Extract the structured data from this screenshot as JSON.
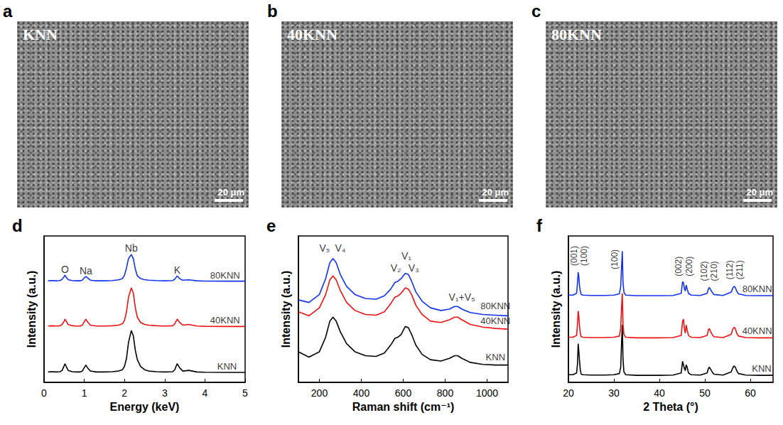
{
  "images": [
    {
      "panel": "a",
      "label": "KNN",
      "scale_bar": "20 μm"
    },
    {
      "panel": "b",
      "label": "40KNN",
      "scale_bar": "20 μm"
    },
    {
      "panel": "c",
      "label": "80KNN",
      "scale_bar": "20 μm"
    }
  ],
  "chart_data": [
    {
      "panel": "d",
      "type": "line",
      "x_label": "Energy (keV)",
      "y_label": "Intensity (a.u.)",
      "xlim": [
        0,
        5
      ],
      "xticks": [
        0,
        1,
        2,
        3,
        4,
        5
      ],
      "ylim": [
        0,
        11
      ],
      "tick_labels": "x",
      "grid": false,
      "x": [
        0.1,
        0.2,
        0.3,
        0.4,
        0.45,
        0.5,
        0.52,
        0.55,
        0.6,
        0.7,
        0.8,
        0.9,
        0.95,
        1.0,
        1.04,
        1.08,
        1.15,
        1.3,
        1.5,
        1.7,
        1.85,
        1.95,
        2.0,
        2.05,
        2.1,
        2.17,
        2.22,
        2.27,
        2.32,
        2.4,
        2.5,
        2.6,
        2.8,
        3.0,
        3.2,
        3.25,
        3.31,
        3.37,
        3.45,
        3.6,
        3.8,
        4.0,
        4.5,
        5.0
      ],
      "series": [
        {
          "name": "KNN",
          "color": "#000000",
          "label_xy": [
            4.55,
            1.2
          ],
          "values": [
            0.78,
            0.8,
            0.78,
            0.8,
            0.9,
            1.25,
            1.4,
            1.2,
            0.9,
            0.8,
            0.78,
            0.78,
            0.85,
            1.1,
            1.3,
            1.1,
            0.85,
            0.78,
            0.78,
            0.8,
            0.85,
            0.95,
            1.2,
            1.8,
            3.0,
            3.9,
            3.5,
            2.4,
            1.7,
            1.2,
            0.95,
            0.85,
            0.8,
            0.78,
            0.8,
            0.95,
            1.4,
            1.1,
            0.85,
            0.9,
            0.78,
            0.76,
            0.75,
            0.75
          ]
        },
        {
          "name": "40KNN",
          "color": "#ee1111",
          "label_xy": [
            4.5,
            4.65
          ],
          "values": [
            4.23,
            4.25,
            4.23,
            4.25,
            4.35,
            4.6,
            4.75,
            4.6,
            4.35,
            4.25,
            4.23,
            4.23,
            4.3,
            4.55,
            4.75,
            4.55,
            4.3,
            4.23,
            4.23,
            4.25,
            4.3,
            4.4,
            4.65,
            5.3,
            6.4,
            7.1,
            6.7,
            5.6,
            4.9,
            4.5,
            4.35,
            4.3,
            4.25,
            4.23,
            4.25,
            4.4,
            4.75,
            4.5,
            4.3,
            4.35,
            4.23,
            4.21,
            4.2,
            4.2
          ]
        },
        {
          "name": "80KNN",
          "color": "#1133ee",
          "label_xy": [
            4.5,
            8.05
          ],
          "values": [
            7.63,
            7.65,
            7.63,
            7.65,
            7.75,
            7.95,
            8.05,
            7.9,
            7.72,
            7.65,
            7.63,
            7.63,
            7.68,
            7.85,
            7.95,
            7.85,
            7.68,
            7.63,
            7.63,
            7.65,
            7.7,
            7.8,
            8.05,
            8.6,
            9.3,
            9.6,
            9.3,
            8.5,
            8.0,
            7.8,
            7.72,
            7.68,
            7.65,
            7.63,
            7.65,
            7.75,
            8.0,
            7.8,
            7.68,
            7.7,
            7.63,
            7.61,
            7.6,
            7.6
          ]
        }
      ],
      "annotations": [
        {
          "x": 0.52,
          "y": 8.5,
          "text": "O"
        },
        {
          "x": 1.04,
          "y": 8.4,
          "text": "Na"
        },
        {
          "x": 2.17,
          "y": 10.1,
          "text": "Nb"
        },
        {
          "x": 3.31,
          "y": 8.45,
          "text": "K"
        }
      ]
    },
    {
      "panel": "e",
      "type": "line",
      "x_label": "Raman shift (cm⁻¹)",
      "y_label": "Intensity (a.u.)",
      "xlim": [
        100,
        1100
      ],
      "xticks": [
        200,
        400,
        600,
        800,
        1000
      ],
      "ylim": [
        0,
        11
      ],
      "tick_labels": "x",
      "grid": false,
      "x": [
        100,
        150,
        200,
        230,
        250,
        265,
        280,
        300,
        330,
        370,
        420,
        470,
        510,
        540,
        560,
        575,
        590,
        610,
        625,
        640,
        660,
        690,
        730,
        780,
        820,
        845,
        860,
        880,
        920,
        980,
        1040,
        1100
      ],
      "series": [
        {
          "name": "KNN",
          "color": "#000000",
          "label_xy": [
            1040,
            1.9
          ],
          "values": [
            2.3,
            1.9,
            2.3,
            3.4,
            4.6,
            4.9,
            4.6,
            3.8,
            2.9,
            2.3,
            2.0,
            1.95,
            2.2,
            2.8,
            3.3,
            3.4,
            3.6,
            4.2,
            4.1,
            3.6,
            2.8,
            2.1,
            1.7,
            1.6,
            1.8,
            2.0,
            2.0,
            1.8,
            1.5,
            1.35,
            1.3,
            1.3
          ]
        },
        {
          "name": "40KNN",
          "color": "#ee1111",
          "label_xy": [
            1040,
            4.6
          ],
          "values": [
            5.3,
            5.0,
            5.6,
            6.6,
            7.7,
            8.0,
            7.7,
            6.9,
            6.0,
            5.4,
            5.1,
            5.05,
            5.3,
            5.9,
            6.4,
            6.5,
            6.7,
            7.1,
            7.0,
            6.6,
            5.8,
            5.1,
            4.6,
            4.5,
            4.7,
            4.9,
            4.9,
            4.7,
            4.35,
            4.15,
            4.05,
            4.0
          ]
        },
        {
          "name": "80KNN",
          "color": "#1133ee",
          "label_xy": [
            1040,
            5.75
          ],
          "values": [
            6.2,
            6.0,
            6.6,
            7.8,
            9.0,
            9.3,
            9.0,
            8.1,
            7.2,
            6.6,
            6.3,
            6.25,
            6.5,
            7.0,
            7.5,
            7.6,
            7.8,
            8.2,
            8.1,
            7.6,
            6.8,
            6.1,
            5.6,
            5.4,
            5.5,
            5.7,
            5.7,
            5.5,
            5.25,
            5.1,
            5.05,
            5.0
          ]
        }
      ],
      "annotations": [
        {
          "x": 225,
          "y": 10.1,
          "text": "V₅"
        },
        {
          "x": 300,
          "y": 10.1,
          "text": "V₄"
        },
        {
          "x": 615,
          "y": 9.5,
          "text": "V₁"
        },
        {
          "x": 565,
          "y": 8.6,
          "text": "V₂"
        },
        {
          "x": 650,
          "y": 8.6,
          "text": "V₃"
        },
        {
          "x": 880,
          "y": 6.4,
          "text": "V₁+V₅"
        }
      ]
    },
    {
      "panel": "f",
      "type": "line",
      "x_label": "2 Theta (°)",
      "y_label": "Intensity (a.u.)",
      "xlim": [
        20,
        65
      ],
      "xticks": [
        20,
        30,
        40,
        50,
        60
      ],
      "ylim": [
        0,
        12.5
      ],
      "tick_labels": "x",
      "grid": false,
      "x": [
        20,
        21,
        21.8,
        22.0,
        22.15,
        22.3,
        22.45,
        22.6,
        22.8,
        23.2,
        25,
        28,
        30,
        31.2,
        31.5,
        31.7,
        31.85,
        32.0,
        32.2,
        32.6,
        35,
        40,
        43,
        44.8,
        45.1,
        45.3,
        45.5,
        45.7,
        45.9,
        46.1,
        46.4,
        47,
        49,
        50.5,
        50.8,
        51.0,
        51.3,
        51.6,
        52,
        54,
        55.8,
        56.1,
        56.4,
        56.7,
        57.0,
        57.4,
        59,
        62,
        65
      ],
      "series": [
        {
          "name": "KNN",
          "color": "#000000",
          "label_xy": [
            62.5,
            1.2
          ],
          "values": [
            0.65,
            0.65,
            0.8,
            1.6,
            3.3,
            2.6,
            1.8,
            1.1,
            0.7,
            0.65,
            0.62,
            0.62,
            0.65,
            0.75,
            1.3,
            3.5,
            4.9,
            2.0,
            0.9,
            0.65,
            0.6,
            0.6,
            0.62,
            0.8,
            1.8,
            1.5,
            1.2,
            1.0,
            1.5,
            1.3,
            0.8,
            0.65,
            0.62,
            0.8,
            1.2,
            1.3,
            1.1,
            0.9,
            0.7,
            0.62,
            0.9,
            1.2,
            1.4,
            1.3,
            1.0,
            0.75,
            0.62,
            0.6,
            0.6
          ]
        },
        {
          "name": "40KNN",
          "color": "#ee1111",
          "label_xy": [
            61.5,
            4.4
          ],
          "values": [
            3.85,
            3.85,
            4.0,
            5.0,
            6.1,
            5.6,
            4.8,
            4.2,
            3.9,
            3.85,
            3.82,
            3.82,
            3.85,
            3.95,
            4.6,
            6.5,
            7.6,
            5.0,
            4.1,
            3.85,
            3.8,
            3.8,
            3.82,
            4.0,
            5.2,
            5.4,
            4.6,
            4.2,
            4.9,
            4.5,
            4.0,
            3.85,
            3.82,
            4.0,
            4.5,
            4.6,
            4.3,
            4.1,
            3.9,
            3.82,
            4.1,
            4.5,
            4.7,
            4.6,
            4.2,
            3.95,
            3.82,
            3.8,
            3.8
          ]
        },
        {
          "name": "80KNN",
          "color": "#1133ee",
          "label_xy": [
            61.5,
            8.0
          ],
          "values": [
            7.45,
            7.45,
            7.6,
            8.5,
            9.4,
            9.0,
            8.2,
            7.8,
            7.5,
            7.45,
            7.42,
            7.42,
            7.45,
            7.55,
            8.2,
            10.0,
            11.2,
            8.6,
            7.7,
            7.45,
            7.4,
            7.4,
            7.42,
            7.6,
            8.6,
            8.5,
            8.0,
            7.8,
            8.3,
            8.0,
            7.6,
            7.45,
            7.42,
            7.6,
            8.0,
            8.1,
            7.9,
            7.7,
            7.5,
            7.42,
            7.7,
            8.0,
            8.2,
            8.1,
            7.8,
            7.55,
            7.42,
            7.4,
            7.4
          ]
        }
      ],
      "annotations": [
        {
          "x": 21.2,
          "y": 10.8,
          "text": "(001)"
        },
        {
          "x": 23.4,
          "y": 10.8,
          "text": "(100)"
        },
        {
          "x": 30.2,
          "y": 10.5,
          "text": "(100)"
        },
        {
          "x": 44.2,
          "y": 9.9,
          "text": "(002)"
        },
        {
          "x": 46.5,
          "y": 9.9,
          "text": "(200)"
        },
        {
          "x": 49.9,
          "y": 9.5,
          "text": "(102)"
        },
        {
          "x": 52.1,
          "y": 9.5,
          "text": "(210)"
        },
        {
          "x": 55.5,
          "y": 9.6,
          "text": "(112)"
        },
        {
          "x": 57.7,
          "y": 9.6,
          "text": "(211)"
        }
      ]
    }
  ]
}
